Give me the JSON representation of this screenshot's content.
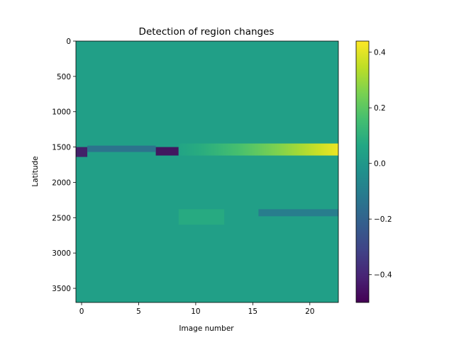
{
  "chart_data": {
    "type": "heatmap",
    "title": "Detection of region changes",
    "xlabel": "Image number",
    "ylabel": "Latitude",
    "x_range": [
      -0.5,
      22.5
    ],
    "y_range": [
      3700,
      0
    ],
    "x_ticks": [
      0,
      5,
      10,
      15,
      20
    ],
    "x_tick_labels": [
      "0",
      "5",
      "10",
      "15",
      "20"
    ],
    "y_ticks": [
      0,
      500,
      1000,
      1500,
      2000,
      2500,
      3000,
      3500
    ],
    "y_tick_labels": [
      "0",
      "500",
      "1000",
      "1500",
      "2000",
      "2500",
      "3000",
      "3500"
    ],
    "colormap": "viridis",
    "color_range": [
      -0.5,
      0.44
    ],
    "colorbar_ticks": [
      0.4,
      0.2,
      0.0,
      -0.2,
      -0.4
    ],
    "colorbar_tick_labels": [
      "0.4",
      "0.2",
      "0.0",
      "−0.2",
      "−0.4"
    ],
    "background_value": 0.03,
    "features": [
      {
        "name": "dark band left",
        "x": [
          -0.5,
          0.5
        ],
        "y": [
          1500,
          1640
        ],
        "value": -0.45
      },
      {
        "name": "dark blob",
        "x": [
          6.5,
          8.5
        ],
        "y": [
          1500,
          1620
        ],
        "value": -0.48
      },
      {
        "name": "blue band",
        "x": [
          0.5,
          6.5
        ],
        "y": [
          1480,
          1570
        ],
        "value": -0.16
      },
      {
        "name": "bright band ramp",
        "x": [
          8.5,
          22.5
        ],
        "y": [
          1450,
          1620
        ],
        "value_start": 0.05,
        "value_end": 0.42
      },
      {
        "name": "lower blue streak",
        "x": [
          15.5,
          22.5
        ],
        "y": [
          2380,
          2480
        ],
        "value": -0.12
      },
      {
        "name": "green patch",
        "x": [
          8.5,
          12.5
        ],
        "y": [
          2380,
          2600
        ],
        "value": 0.08
      }
    ]
  }
}
